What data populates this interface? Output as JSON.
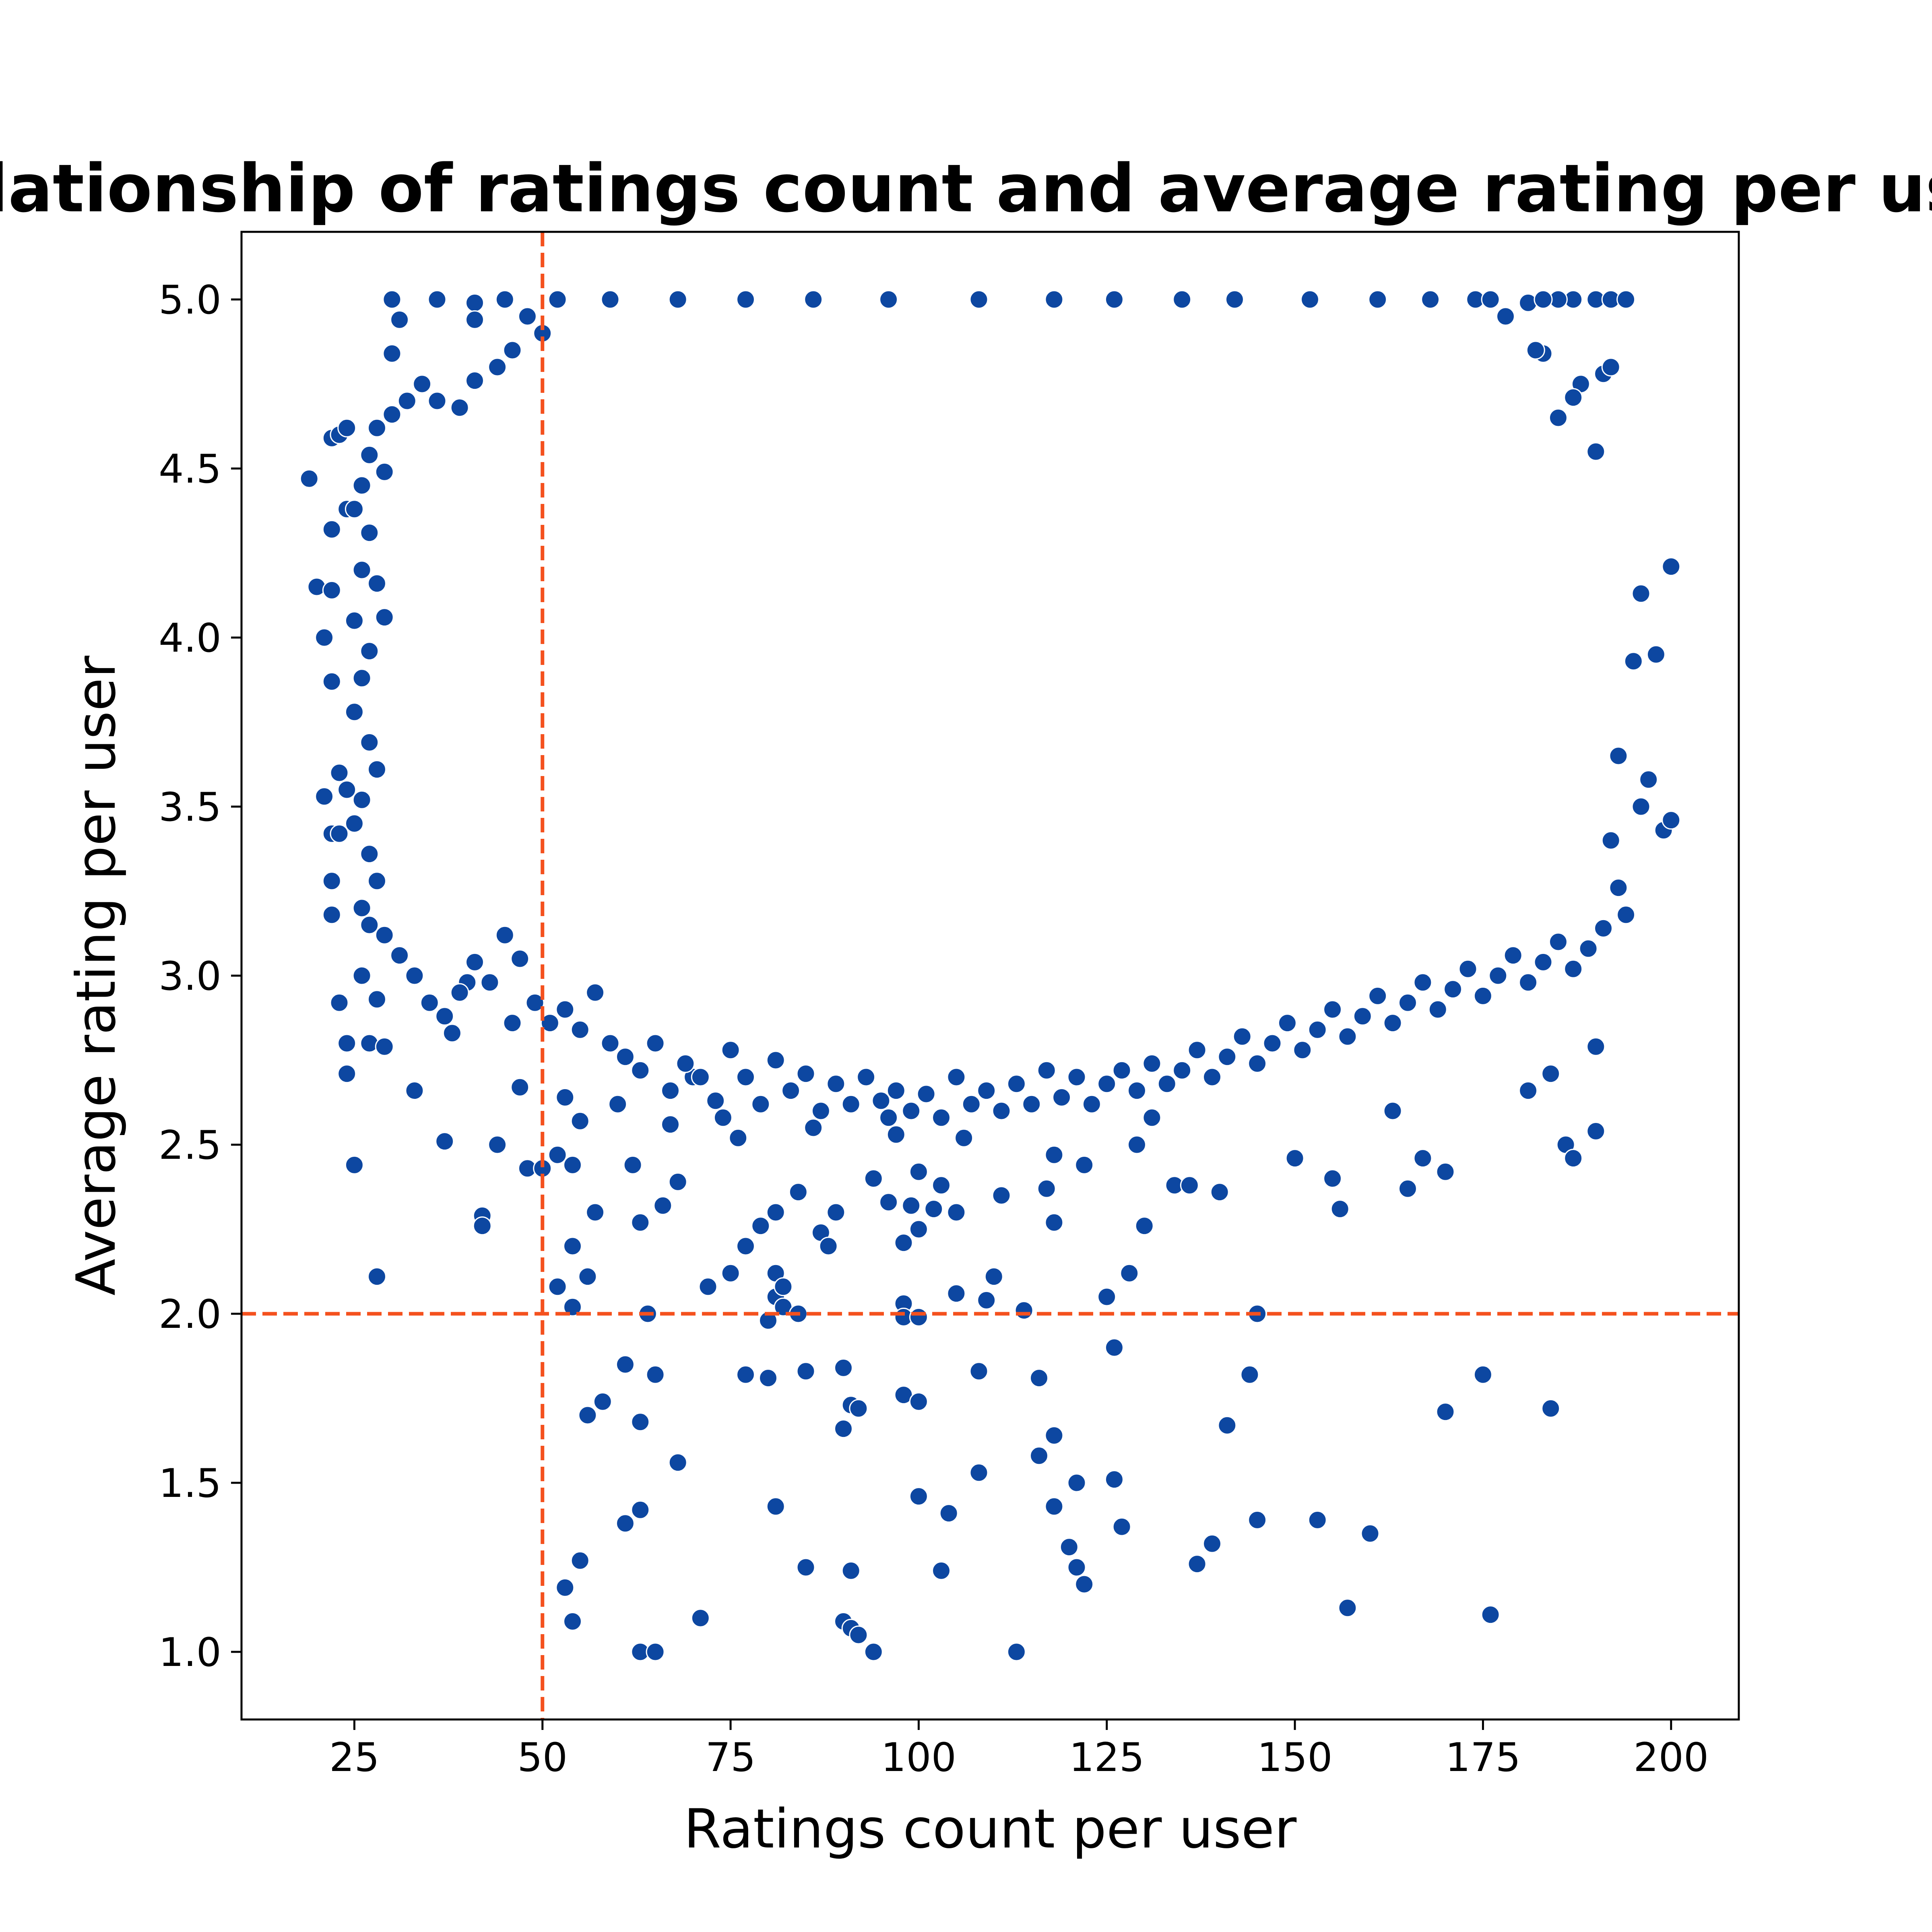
{
  "chart_data": {
    "type": "scatter",
    "title": "Relationship of ratings count and average rating per user",
    "xlabel": "Ratings count per user",
    "ylabel": "Average rating per user",
    "xlim": [
      10,
      209
    ],
    "ylim": [
      0.8,
      5.2
    ],
    "xticks": [
      25,
      50,
      75,
      100,
      125,
      150,
      175,
      200
    ],
    "yticks": [
      1.0,
      1.5,
      2.0,
      2.5,
      3.0,
      3.5,
      4.0,
      4.5,
      5.0
    ],
    "xtick_labels": [
      "25",
      "50",
      "75",
      "100",
      "125",
      "150",
      "175",
      "200"
    ],
    "ytick_labels": [
      "1.0",
      "1.5",
      "2.0",
      "2.5",
      "3.0",
      "3.5",
      "4.0",
      "4.5",
      "5.0"
    ],
    "grid": false,
    "point_color": "#0d47a1",
    "point_edge_color": "#ffffff",
    "reference_lines": [
      {
        "orientation": "vertical",
        "value": 50,
        "color": "#f4511e",
        "style": "dashed"
      },
      {
        "orientation": "horizontal",
        "value": 2.0,
        "color": "#f4511e",
        "style": "dashed"
      }
    ],
    "points": [
      [
        19,
        4.47
      ],
      [
        20,
        4.15
      ],
      [
        21,
        4.0
      ],
      [
        21,
        3.53
      ],
      [
        22,
        4.59
      ],
      [
        22,
        4.32
      ],
      [
        22,
        4.14
      ],
      [
        22,
        3.87
      ],
      [
        22,
        3.42
      ],
      [
        22,
        3.28
      ],
      [
        22,
        3.18
      ],
      [
        23,
        4.6
      ],
      [
        23,
        3.6
      ],
      [
        23,
        3.42
      ],
      [
        23,
        2.92
      ],
      [
        24,
        4.62
      ],
      [
        24,
        4.38
      ],
      [
        24,
        3.55
      ],
      [
        24,
        2.8
      ],
      [
        24,
        2.71
      ],
      [
        25,
        2.44
      ],
      [
        25,
        4.05
      ],
      [
        26,
        3.0
      ],
      [
        27,
        3.15
      ],
      [
        27,
        2.8
      ],
      [
        28,
        2.93
      ],
      [
        28,
        2.11
      ],
      [
        29,
        2.79
      ],
      [
        30,
        5.0
      ],
      [
        30,
        4.84
      ],
      [
        31,
        4.94
      ],
      [
        33,
        2.66
      ],
      [
        36,
        5.0
      ],
      [
        37,
        2.51
      ],
      [
        38,
        2.83
      ],
      [
        40,
        2.98
      ],
      [
        41,
        4.99
      ],
      [
        41,
        4.94
      ],
      [
        42,
        2.29
      ],
      [
        42,
        2.26
      ],
      [
        44,
        2.5
      ],
      [
        46,
        2.86
      ],
      [
        47,
        2.67
      ],
      [
        48,
        2.43
      ],
      [
        50,
        2.43
      ],
      [
        52,
        2.08
      ],
      [
        52,
        2.47
      ],
      [
        53,
        1.19
      ],
      [
        53,
        2.64
      ],
      [
        54,
        2.2
      ],
      [
        54,
        2.02
      ],
      [
        54,
        1.09
      ],
      [
        54,
        2.44
      ],
      [
        55,
        2.57
      ],
      [
        55,
        1.27
      ],
      [
        56,
        2.11
      ],
      [
        56,
        1.7
      ],
      [
        57,
        2.3
      ],
      [
        58,
        1.74
      ],
      [
        60,
        2.62
      ],
      [
        61,
        1.85
      ],
      [
        61,
        1.38
      ],
      [
        62,
        2.44
      ],
      [
        63,
        2.27
      ],
      [
        63,
        1.68
      ],
      [
        63,
        1.42
      ],
      [
        63,
        1.0
      ],
      [
        64,
        2.0
      ],
      [
        65,
        1.82
      ],
      [
        65,
        1.0
      ],
      [
        66,
        2.32
      ],
      [
        67,
        2.56
      ],
      [
        68,
        1.56
      ],
      [
        68,
        2.39
      ],
      [
        70,
        2.7
      ],
      [
        71,
        1.1
      ],
      [
        72,
        2.08
      ],
      [
        74,
        2.58
      ],
      [
        75,
        2.12
      ],
      [
        76,
        2.52
      ],
      [
        77,
        2.2
      ],
      [
        77,
        1.82
      ],
      [
        79,
        2.26
      ],
      [
        80,
        1.98
      ],
      [
        80,
        1.81
      ],
      [
        81,
        2.3
      ],
      [
        81,
        2.12
      ],
      [
        81,
        2.05
      ],
      [
        81,
        1.43
      ],
      [
        82,
        2.02
      ],
      [
        82,
        2.08
      ],
      [
        84,
        2.36
      ],
      [
        84,
        2.0
      ],
      [
        85,
        1.83
      ],
      [
        85,
        1.25
      ],
      [
        86,
        2.55
      ],
      [
        87,
        2.24
      ],
      [
        88,
        2.2
      ],
      [
        89,
        2.3
      ],
      [
        90,
        1.84
      ],
      [
        90,
        1.66
      ],
      [
        90,
        1.09
      ],
      [
        91,
        1.73
      ],
      [
        91,
        1.24
      ],
      [
        91,
        1.07
      ],
      [
        92,
        1.72
      ],
      [
        92,
        1.05
      ],
      [
        94,
        2.4
      ],
      [
        94,
        1.0
      ],
      [
        96,
        2.58
      ],
      [
        96,
        2.33
      ],
      [
        97,
        2.53
      ],
      [
        98,
        2.21
      ],
      [
        98,
        2.03
      ],
      [
        98,
        1.99
      ],
      [
        98,
        1.76
      ],
      [
        99,
        2.32
      ],
      [
        100,
        2.25
      ],
      [
        100,
        2.42
      ],
      [
        100,
        1.99
      ],
      [
        100,
        1.74
      ],
      [
        100,
        1.46
      ],
      [
        102,
        2.31
      ],
      [
        103,
        2.38
      ],
      [
        103,
        1.24
      ],
      [
        104,
        1.41
      ],
      [
        105,
        2.06
      ],
      [
        105,
        2.3
      ],
      [
        106,
        2.52
      ],
      [
        108,
        1.53
      ],
      [
        108,
        1.83
      ],
      [
        109,
        2.04
      ],
      [
        110,
        2.11
      ],
      [
        111,
        2.35
      ],
      [
        113,
        1.0
      ],
      [
        114,
        2.01
      ],
      [
        116,
        1.58
      ],
      [
        116,
        1.81
      ],
      [
        117,
        2.37
      ],
      [
        118,
        2.47
      ],
      [
        118,
        2.27
      ],
      [
        118,
        1.64
      ],
      [
        118,
        1.43
      ],
      [
        120,
        1.31
      ],
      [
        121,
        1.5
      ],
      [
        121,
        1.25
      ],
      [
        122,
        1.2
      ],
      [
        122,
        2.44
      ],
      [
        125,
        2.05
      ],
      [
        126,
        1.9
      ],
      [
        126,
        1.51
      ],
      [
        127,
        1.37
      ],
      [
        128,
        2.12
      ],
      [
        129,
        2.5
      ],
      [
        130,
        2.26
      ],
      [
        131,
        2.58
      ],
      [
        134,
        2.38
      ],
      [
        136,
        2.38
      ],
      [
        137,
        1.26
      ],
      [
        139,
        1.32
      ],
      [
        140,
        2.36
      ],
      [
        141,
        1.67
      ],
      [
        144,
        1.82
      ],
      [
        145,
        2.0
      ],
      [
        145,
        1.39
      ],
      [
        150,
        2.46
      ],
      [
        153,
        1.39
      ],
      [
        155,
        2.4
      ],
      [
        156,
        2.31
      ],
      [
        157,
        1.13
      ],
      [
        160,
        1.35
      ],
      [
        163,
        2.6
      ],
      [
        165,
        2.37
      ],
      [
        167,
        2.46
      ],
      [
        170,
        2.42
      ],
      [
        170,
        1.71
      ],
      [
        175,
        1.82
      ],
      [
        176,
        1.11
      ],
      [
        181,
        2.66
      ],
      [
        184,
        2.71
      ],
      [
        184,
        1.72
      ],
      [
        186,
        2.5
      ],
      [
        187,
        2.46
      ],
      [
        190,
        2.79
      ],
      [
        190,
        2.54
      ],
      [
        199,
        3.43
      ],
      [
        200,
        3.46
      ],
      [
        200,
        4.21
      ],
      [
        197,
        3.58
      ],
      [
        196,
        3.5
      ],
      [
        194,
        3.18
      ],
      [
        192,
        3.4
      ],
      [
        193,
        3.65
      ],
      [
        195,
        3.93
      ],
      [
        196,
        4.13
      ],
      [
        198,
        3.95
      ],
      [
        188,
        4.75
      ],
      [
        191,
        4.78
      ],
      [
        192,
        4.8
      ],
      [
        190,
        4.55
      ],
      [
        187,
        4.71
      ],
      [
        185,
        4.65
      ],
      [
        183,
        4.84
      ],
      [
        182,
        4.85
      ],
      [
        181,
        4.99
      ],
      [
        178,
        4.95
      ],
      [
        190,
        5.0
      ],
      [
        192,
        5.0
      ],
      [
        194,
        5.0
      ],
      [
        187,
        5.0
      ],
      [
        185,
        5.0
      ],
      [
        183,
        5.0
      ],
      [
        174,
        5.0
      ],
      [
        176,
        5.0
      ],
      [
        168,
        5.0
      ],
      [
        161,
        5.0
      ],
      [
        152,
        5.0
      ],
      [
        142,
        5.0
      ],
      [
        135,
        5.0
      ],
      [
        126,
        5.0
      ],
      [
        118,
        5.0
      ],
      [
        108,
        5.0
      ],
      [
        96,
        5.0
      ],
      [
        86,
        5.0
      ],
      [
        77,
        5.0
      ],
      [
        68,
        5.0
      ],
      [
        59,
        5.0
      ],
      [
        52,
        5.0
      ],
      [
        45,
        5.0
      ],
      [
        48,
        4.95
      ],
      [
        50,
        4.9
      ],
      [
        46,
        4.85
      ],
      [
        44,
        4.8
      ],
      [
        41,
        4.76
      ],
      [
        39,
        4.68
      ],
      [
        36,
        4.7
      ],
      [
        34,
        4.75
      ],
      [
        32,
        4.7
      ],
      [
        30,
        4.66
      ],
      [
        28,
        4.62
      ],
      [
        27,
        4.54
      ],
      [
        29,
        4.49
      ],
      [
        26,
        4.45
      ],
      [
        25,
        4.38
      ],
      [
        27,
        4.31
      ],
      [
        26,
        4.2
      ],
      [
        28,
        4.16
      ],
      [
        29,
        4.06
      ],
      [
        27,
        3.96
      ],
      [
        26,
        3.88
      ],
      [
        25,
        3.78
      ],
      [
        27,
        3.69
      ],
      [
        28,
        3.61
      ],
      [
        26,
        3.52
      ],
      [
        25,
        3.45
      ],
      [
        27,
        3.36
      ],
      [
        28,
        3.28
      ],
      [
        26,
        3.2
      ],
      [
        29,
        3.12
      ],
      [
        31,
        3.06
      ],
      [
        33,
        3.0
      ],
      [
        35,
        2.92
      ],
      [
        37,
        2.88
      ],
      [
        39,
        2.95
      ],
      [
        41,
        3.04
      ],
      [
        43,
        2.98
      ],
      [
        45,
        3.12
      ],
      [
        47,
        3.05
      ],
      [
        49,
        2.92
      ],
      [
        51,
        2.86
      ],
      [
        53,
        2.9
      ],
      [
        55,
        2.84
      ],
      [
        57,
        2.95
      ],
      [
        59,
        2.8
      ],
      [
        61,
        2.76
      ],
      [
        63,
        2.72
      ],
      [
        65,
        2.8
      ],
      [
        67,
        2.66
      ],
      [
        69,
        2.74
      ],
      [
        71,
        2.7
      ],
      [
        73,
        2.63
      ],
      [
        75,
        2.78
      ],
      [
        77,
        2.7
      ],
      [
        79,
        2.62
      ],
      [
        81,
        2.75
      ],
      [
        83,
        2.66
      ],
      [
        85,
        2.71
      ],
      [
        87,
        2.6
      ],
      [
        89,
        2.68
      ],
      [
        91,
        2.62
      ],
      [
        93,
        2.7
      ],
      [
        95,
        2.63
      ],
      [
        97,
        2.66
      ],
      [
        99,
        2.6
      ],
      [
        101,
        2.65
      ],
      [
        103,
        2.58
      ],
      [
        105,
        2.7
      ],
      [
        107,
        2.62
      ],
      [
        109,
        2.66
      ],
      [
        111,
        2.6
      ],
      [
        113,
        2.68
      ],
      [
        115,
        2.62
      ],
      [
        117,
        2.72
      ],
      [
        119,
        2.64
      ],
      [
        121,
        2.7
      ],
      [
        123,
        2.62
      ],
      [
        125,
        2.68
      ],
      [
        127,
        2.72
      ],
      [
        129,
        2.66
      ],
      [
        131,
        2.74
      ],
      [
        133,
        2.68
      ],
      [
        135,
        2.72
      ],
      [
        137,
        2.78
      ],
      [
        139,
        2.7
      ],
      [
        141,
        2.76
      ],
      [
        143,
        2.82
      ],
      [
        145,
        2.74
      ],
      [
        147,
        2.8
      ],
      [
        149,
        2.86
      ],
      [
        151,
        2.78
      ],
      [
        153,
        2.84
      ],
      [
        155,
        2.9
      ],
      [
        157,
        2.82
      ],
      [
        159,
        2.88
      ],
      [
        161,
        2.94
      ],
      [
        163,
        2.86
      ],
      [
        165,
        2.92
      ],
      [
        167,
        2.98
      ],
      [
        169,
        2.9
      ],
      [
        171,
        2.96
      ],
      [
        173,
        3.02
      ],
      [
        175,
        2.94
      ],
      [
        177,
        3.0
      ],
      [
        179,
        3.06
      ],
      [
        181,
        2.98
      ],
      [
        183,
        3.04
      ],
      [
        185,
        3.1
      ],
      [
        187,
        3.02
      ],
      [
        189,
        3.08
      ],
      [
        191,
        3.14
      ],
      [
        193,
        3.26
      ]
    ]
  }
}
